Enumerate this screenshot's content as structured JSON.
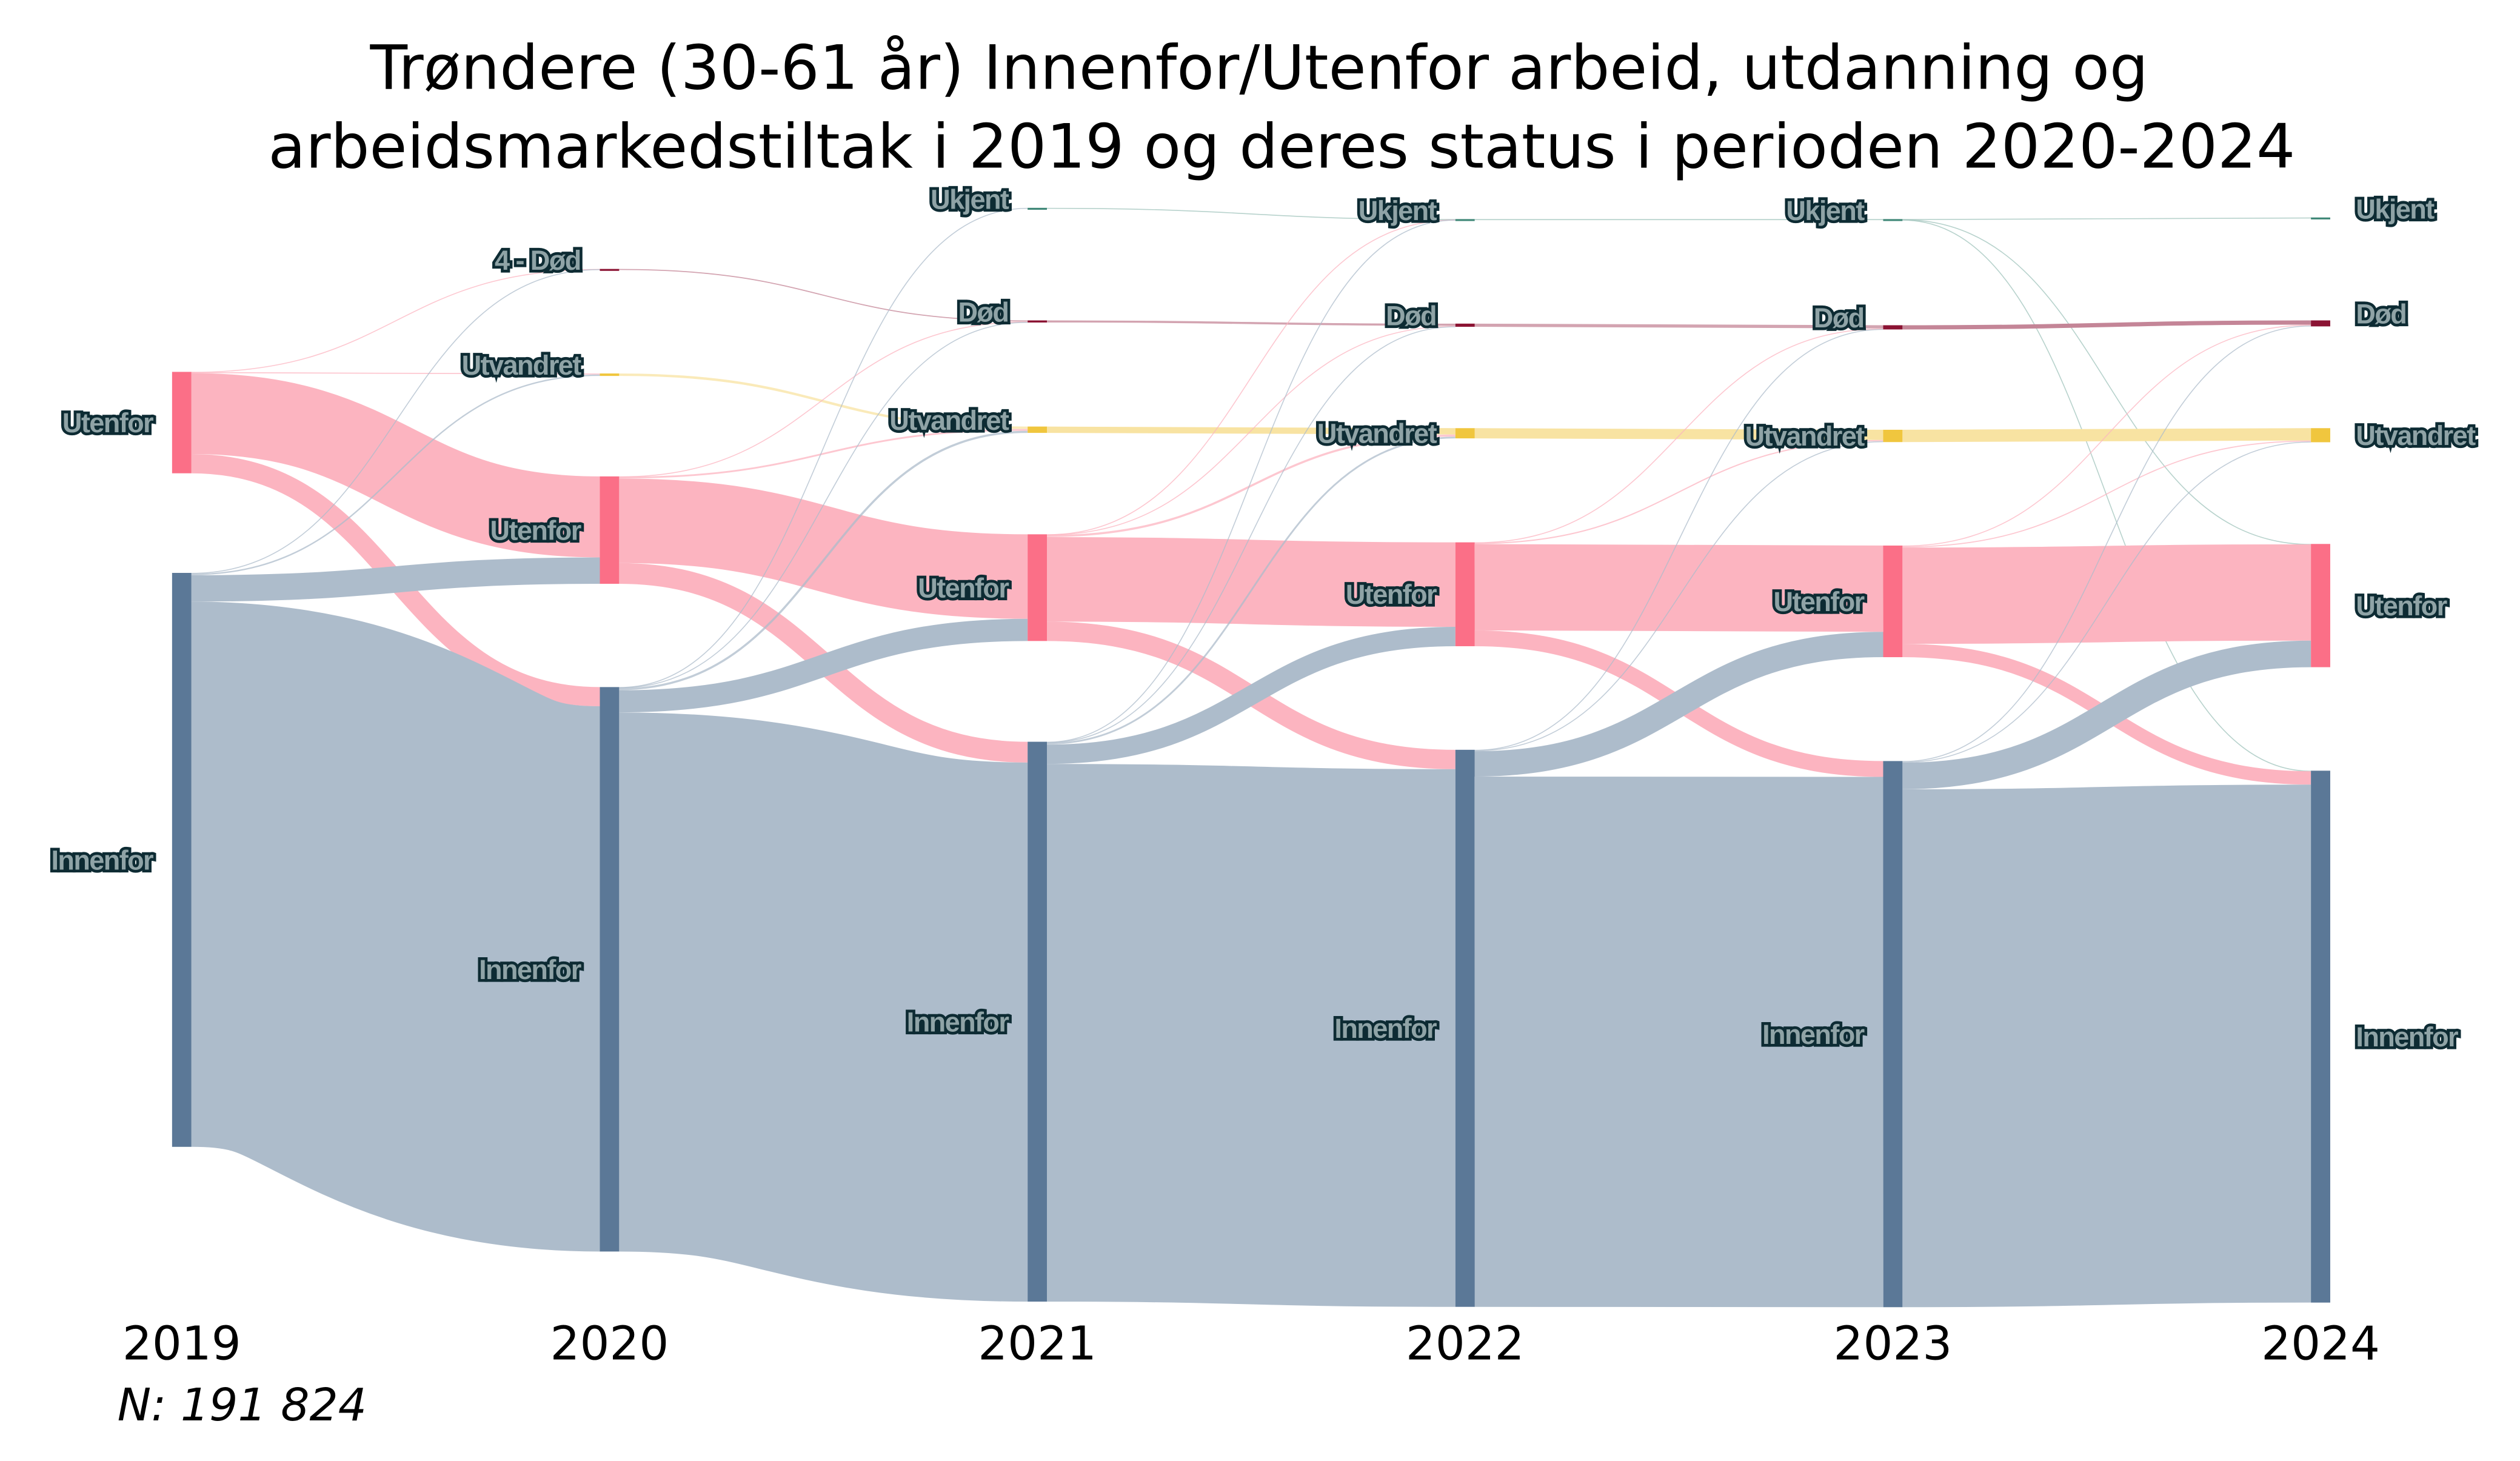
{
  "chart_data": {
    "type": "sankey",
    "title": [
      "Trøndere (30-61 år) Innenfor/Utenfor arbeid, utdanning og",
      "arbeidsmarkedstiltak i 2019 og deres status i perioden 2020-2024"
    ],
    "note": "N: 191 824",
    "total": 191824,
    "columns": [
      "2019",
      "2020",
      "2021",
      "2022",
      "2023",
      "2024"
    ],
    "colors": {
      "Innenfor": {
        "node": "#5b7897",
        "link": "#adbccb"
      },
      "Utenfor": {
        "node": "#fb6f87",
        "link": "#fcb4c0"
      },
      "Utvandret": {
        "node": "#f0c63e",
        "link": "#f8e3a2"
      },
      "Død": {
        "node": "#8b1333",
        "link": "#c48597"
      },
      "4 - Død": {
        "node": "#8b1333",
        "link": "#c48597"
      },
      "Ukjent": {
        "node": "#3f8777",
        "link": "#9fc3bb"
      }
    },
    "nodes": [
      [
        {
          "label": "Utenfor",
          "value": 28800
        },
        {
          "label": "Innenfor",
          "value": 163000
        }
      ],
      [
        {
          "label": "4 - Død",
          "value": 300
        },
        {
          "label": "Utvandret",
          "value": 700
        },
        {
          "label": "Utenfor",
          "value": 30500
        },
        {
          "label": "Innenfor",
          "value": 160300
        }
      ],
      [
        {
          "label": "Ukjent",
          "value": 100
        },
        {
          "label": "Død",
          "value": 600
        },
        {
          "label": "Utvandret",
          "value": 1800
        },
        {
          "label": "Utenfor",
          "value": 30300
        },
        {
          "label": "Innenfor",
          "value": 159000
        }
      ],
      [
        {
          "label": "Ukjent",
          "value": 300
        },
        {
          "label": "Død",
          "value": 900
        },
        {
          "label": "Utvandret",
          "value": 2900
        },
        {
          "label": "Utenfor",
          "value": 29500
        },
        {
          "label": "Innenfor",
          "value": 158200
        }
      ],
      [
        {
          "label": "Ukjent",
          "value": 300
        },
        {
          "label": "Død",
          "value": 1200
        },
        {
          "label": "Utvandret",
          "value": 3500
        },
        {
          "label": "Utenfor",
          "value": 31700
        },
        {
          "label": "Innenfor",
          "value": 155100
        }
      ],
      [
        {
          "label": "Ukjent",
          "value": 50
        },
        {
          "label": "Død",
          "value": 1700
        },
        {
          "label": "Utvandret",
          "value": 4000
        },
        {
          "label": "Utenfor",
          "value": 35000
        },
        {
          "label": "Innenfor",
          "value": 151050
        }
      ]
    ],
    "links": [
      {
        "from": [
          0,
          "Utenfor"
        ],
        "to": "4 - Død",
        "value": 50
      },
      {
        "from": [
          0,
          "Utenfor"
        ],
        "to": "Utvandret",
        "value": 300
      },
      {
        "from": [
          0,
          "Utenfor"
        ],
        "to": "Utenfor",
        "value": 23000
      },
      {
        "from": [
          0,
          "Utenfor"
        ],
        "to": "Innenfor",
        "value": 5450
      },
      {
        "from": [
          0,
          "Innenfor"
        ],
        "to": "4 - Død",
        "value": 250
      },
      {
        "from": [
          0,
          "Innenfor"
        ],
        "to": "Utvandret",
        "value": 400
      },
      {
        "from": [
          0,
          "Innenfor"
        ],
        "to": "Utenfor",
        "value": 7500
      },
      {
        "from": [
          0,
          "Innenfor"
        ],
        "to": "Innenfor",
        "value": 154850
      },
      {
        "from": [
          1,
          "4 - Død"
        ],
        "to": "Død",
        "value": 300
      },
      {
        "from": [
          1,
          "Utvandret"
        ],
        "to": "Utvandret",
        "value": 700
      },
      {
        "from": [
          1,
          "Utenfor"
        ],
        "to": "Død",
        "value": 100
      },
      {
        "from": [
          1,
          "Utenfor"
        ],
        "to": "Utvandret",
        "value": 500
      },
      {
        "from": [
          1,
          "Utenfor"
        ],
        "to": "Utenfor",
        "value": 24000
      },
      {
        "from": [
          1,
          "Utenfor"
        ],
        "to": "Innenfor",
        "value": 5900
      },
      {
        "from": [
          1,
          "Innenfor"
        ],
        "to": "Ukjent",
        "value": 100
      },
      {
        "from": [
          1,
          "Innenfor"
        ],
        "to": "Død",
        "value": 200
      },
      {
        "from": [
          1,
          "Innenfor"
        ],
        "to": "Utvandret",
        "value": 600
      },
      {
        "from": [
          1,
          "Innenfor"
        ],
        "to": "Utenfor",
        "value": 6300
      },
      {
        "from": [
          1,
          "Innenfor"
        ],
        "to": "Innenfor",
        "value": 153100
      },
      {
        "from": [
          2,
          "Ukjent"
        ],
        "to": "Ukjent",
        "value": 100
      },
      {
        "from": [
          2,
          "Død"
        ],
        "to": "Død",
        "value": 600
      },
      {
        "from": [
          2,
          "Utvandret"
        ],
        "to": "Utvandret",
        "value": 1800
      },
      {
        "from": [
          2,
          "Utenfor"
        ],
        "to": "Ukjent",
        "value": 50
      },
      {
        "from": [
          2,
          "Utenfor"
        ],
        "to": "Død",
        "value": 150
      },
      {
        "from": [
          2,
          "Utenfor"
        ],
        "to": "Utvandret",
        "value": 600
      },
      {
        "from": [
          2,
          "Utenfor"
        ],
        "to": "Utenfor",
        "value": 24000
      },
      {
        "from": [
          2,
          "Utenfor"
        ],
        "to": "Innenfor",
        "value": 5500
      },
      {
        "from": [
          2,
          "Innenfor"
        ],
        "to": "Ukjent",
        "value": 150
      },
      {
        "from": [
          2,
          "Innenfor"
        ],
        "to": "Død",
        "value": 150
      },
      {
        "from": [
          2,
          "Innenfor"
        ],
        "to": "Utvandret",
        "value": 500
      },
      {
        "from": [
          2,
          "Innenfor"
        ],
        "to": "Utenfor",
        "value": 5500
      },
      {
        "from": [
          2,
          "Innenfor"
        ],
        "to": "Innenfor",
        "value": 152700
      },
      {
        "from": [
          3,
          "Ukjent"
        ],
        "to": "Ukjent",
        "value": 300
      },
      {
        "from": [
          3,
          "Død"
        ],
        "to": "Død",
        "value": 900
      },
      {
        "from": [
          3,
          "Utvandret"
        ],
        "to": "Utvandret",
        "value": 2900
      },
      {
        "from": [
          3,
          "Utenfor"
        ],
        "to": "Død",
        "value": 150
      },
      {
        "from": [
          3,
          "Utenfor"
        ],
        "to": "Utvandret",
        "value": 350
      },
      {
        "from": [
          3,
          "Utenfor"
        ],
        "to": "Utenfor",
        "value": 24500
      },
      {
        "from": [
          3,
          "Utenfor"
        ],
        "to": "Innenfor",
        "value": 4500
      },
      {
        "from": [
          3,
          "Innenfor"
        ],
        "to": "Død",
        "value": 150
      },
      {
        "from": [
          3,
          "Innenfor"
        ],
        "to": "Utvandret",
        "value": 250
      },
      {
        "from": [
          3,
          "Innenfor"
        ],
        "to": "Utenfor",
        "value": 7200
      },
      {
        "from": [
          3,
          "Innenfor"
        ],
        "to": "Innenfor",
        "value": 150600
      },
      {
        "from": [
          4,
          "Ukjent"
        ],
        "to": "Ukjent",
        "value": 50
      },
      {
        "from": [
          4,
          "Ukjent"
        ],
        "to": "Utenfor",
        "value": 100
      },
      {
        "from": [
          4,
          "Ukjent"
        ],
        "to": "Innenfor",
        "value": 150
      },
      {
        "from": [
          4,
          "Død"
        ],
        "to": "Død",
        "value": 1200
      },
      {
        "from": [
          4,
          "Utvandret"
        ],
        "to": "Utvandret",
        "value": 3500
      },
      {
        "from": [
          4,
          "Utenfor"
        ],
        "to": "Død",
        "value": 250
      },
      {
        "from": [
          4,
          "Utenfor"
        ],
        "to": "Utvandret",
        "value": 300
      },
      {
        "from": [
          4,
          "Utenfor"
        ],
        "to": "Utenfor",
        "value": 27350
      },
      {
        "from": [
          4,
          "Utenfor"
        ],
        "to": "Innenfor",
        "value": 3800
      },
      {
        "from": [
          4,
          "Innenfor"
        ],
        "to": "Død",
        "value": 250
      },
      {
        "from": [
          4,
          "Innenfor"
        ],
        "to": "Utvandret",
        "value": 200
      },
      {
        "from": [
          4,
          "Innenfor"
        ],
        "to": "Utenfor",
        "value": 7550
      },
      {
        "from": [
          4,
          "Innenfor"
        ],
        "to": "Innenfor",
        "value": 147100
      }
    ]
  }
}
